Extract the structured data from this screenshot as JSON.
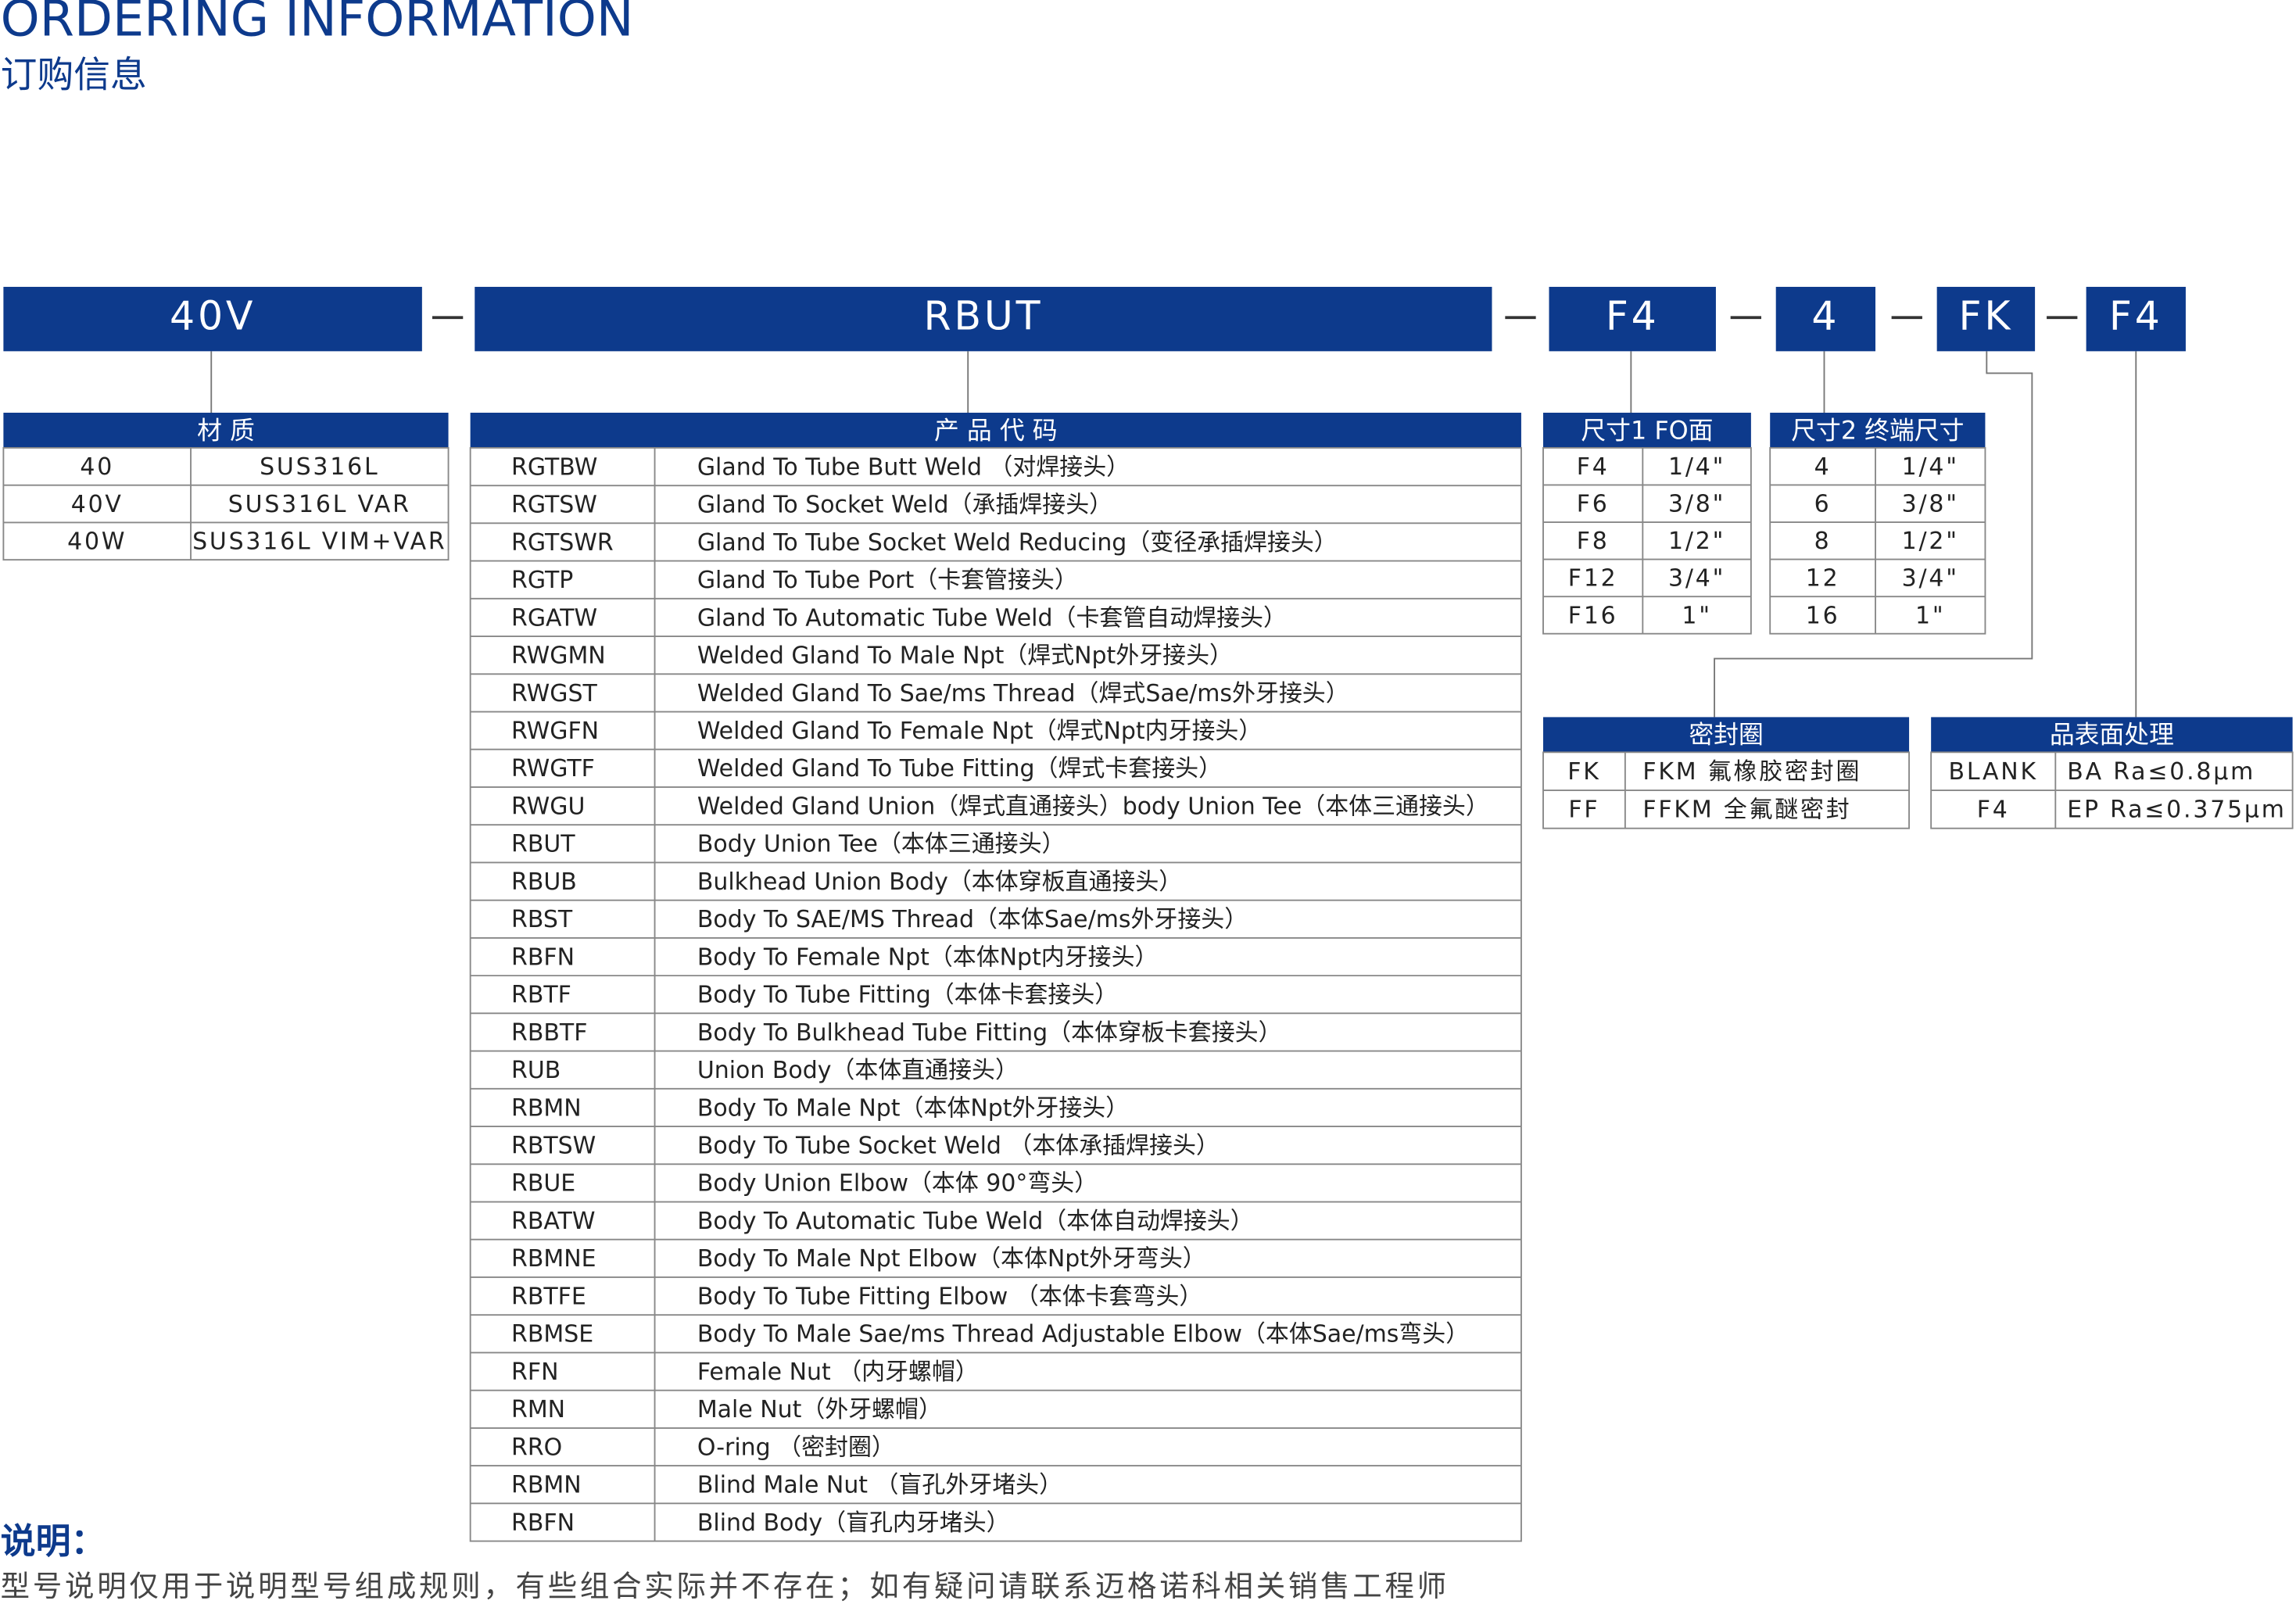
{
  "header": {
    "title": "ORDERING INFORMATION",
    "subtitle": "订购信息"
  },
  "code_boxes": [
    "40V",
    "RBUT",
    "F4",
    "4",
    "FK",
    "F4"
  ],
  "material": {
    "header": "材 质",
    "rows": [
      [
        "40",
        "SUS316L"
      ],
      [
        "40V",
        "SUS316L VAR"
      ],
      [
        "40W",
        "SUS316L VIM+VAR"
      ]
    ]
  },
  "product": {
    "header": "产 品 代 码",
    "rows": [
      [
        "RGTBW",
        "Gland To Tube Butt Weld （对焊接头）"
      ],
      [
        "RGTSW",
        "Gland To Socket Weld（承插焊接头）"
      ],
      [
        "RGTSWR",
        "Gland To Tube Socket Weld Reducing（变径承插焊接头）"
      ],
      [
        "RGTP",
        "Gland To Tube Port（卡套管接头）"
      ],
      [
        "RGATW",
        "Gland To Automatic Tube Weld（卡套管自动焊接头）"
      ],
      [
        "RWGMN",
        "Welded Gland To Male Npt（焊式Npt外牙接头）"
      ],
      [
        "RWGST",
        "Welded Gland To Sae/ms Thread（焊式Sae/ms外牙接头）"
      ],
      [
        "RWGFN",
        "Welded Gland To Female Npt（焊式Npt内牙接头）"
      ],
      [
        "RWGTF",
        "Welded Gland To Tube Fitting（焊式卡套接头）"
      ],
      [
        "RWGU",
        "Welded Gland Union（焊式直通接头）body Union Tee（本体三通接头）"
      ],
      [
        "RBUT",
        "Body Union Tee（本体三通接头）"
      ],
      [
        "RBUB",
        "Bulkhead Union Body（本体穿板直通接头）"
      ],
      [
        "RBST",
        "Body To SAE/MS Thread（本体Sae/ms外牙接头）"
      ],
      [
        "RBFN",
        "Body To Female Npt（本体Npt内牙接头）"
      ],
      [
        "RBTF",
        "Body To Tube Fitting（本体卡套接头）"
      ],
      [
        "RBBTF",
        "Body To Bulkhead Tube Fitting（本体穿板卡套接头）"
      ],
      [
        "RUB",
        "Union Body（本体直通接头）"
      ],
      [
        "RBMN",
        "Body To Male Npt（本体Npt外牙接头）"
      ],
      [
        "RBTSW",
        "Body To Tube Socket Weld （本体承插焊接头）"
      ],
      [
        "RBUE",
        "Body Union Elbow（本体 90°弯头）"
      ],
      [
        "RBATW",
        "Body To Automatic Tube Weld（本体自动焊接头）"
      ],
      [
        "RBMNE",
        "Body To Male Npt Elbow（本体Npt外牙弯头）"
      ],
      [
        "RBTFE",
        "Body To Tube Fitting Elbow （本体卡套弯头）"
      ],
      [
        "RBMSE",
        "Body To Male Sae/ms Thread Adjustable Elbow（本体Sae/ms弯头）"
      ],
      [
        "RFN",
        "Female Nut （内牙螺帽）"
      ],
      [
        "RMN",
        "Male Nut（外牙螺帽）"
      ],
      [
        "RRO",
        "O-ring （密封圈）"
      ],
      [
        "RBMN",
        "Blind Male Nut （盲孔外牙堵头）"
      ],
      [
        "RBFN",
        "Blind Body（盲孔内牙堵头）"
      ]
    ]
  },
  "size1": {
    "header": "尺寸1 FO面",
    "rows": [
      [
        "F4",
        "1/4\""
      ],
      [
        "F6",
        "3/8\""
      ],
      [
        "F8",
        "1/2\""
      ],
      [
        "F12",
        "3/4\""
      ],
      [
        "F16",
        "1\""
      ]
    ]
  },
  "size2": {
    "header": "尺寸2 终端尺寸",
    "rows": [
      [
        "4",
        "1/4\""
      ],
      [
        "6",
        "3/8\""
      ],
      [
        "8",
        "1/2\""
      ],
      [
        "12",
        "3/4\""
      ],
      [
        "16",
        "1\""
      ]
    ]
  },
  "seal": {
    "header": "密封圈",
    "rows": [
      [
        "FK",
        "FKM 氟橡胶密封圈"
      ],
      [
        "FF",
        "FFKM 全氟醚密封"
      ]
    ]
  },
  "surface": {
    "header": "品表面处理",
    "rows": [
      [
        "BLANK",
        "BA Ra≤0.8μm"
      ],
      [
        "F4",
        "EP Ra≤0.375μm"
      ]
    ]
  },
  "notes": {
    "title": "说明：",
    "text": "型号说明仅用于说明型号组成规则，有些组合实际并不存在；如有疑问请联系迈格诺科相关销售工程师"
  }
}
